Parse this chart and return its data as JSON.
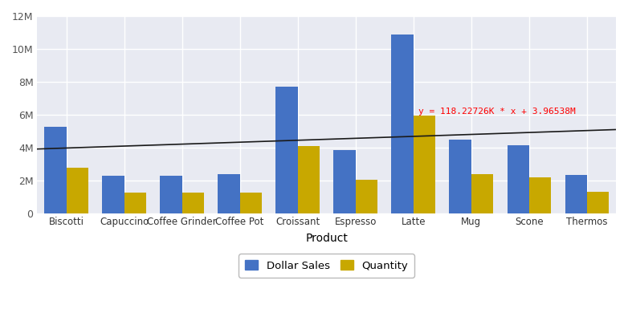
{
  "categories": [
    "Biscotti",
    "Capuccino",
    "Coffee Grinder",
    "Coffee Pot",
    "Croissant",
    "Espresso",
    "Latte",
    "Mug",
    "Scone",
    "Thermos"
  ],
  "dollar_sales": [
    5250000,
    2300000,
    2280000,
    2380000,
    7700000,
    3850000,
    10900000,
    4480000,
    4150000,
    2350000
  ],
  "quantity": [
    2750000,
    1250000,
    1250000,
    1270000,
    4100000,
    2050000,
    5950000,
    2380000,
    2200000,
    1280000
  ],
  "bar_color_blue": "#4472C4",
  "bar_color_yellow": "#C8A800",
  "trendline_slope": 118227.26,
  "trendline_intercept": 3965380,
  "trendline_label": "y = 118.22726K * x + 3.96538M",
  "trendline_color": "#FF0000",
  "trendline_line_color": "#1a1a1a",
  "background_color": "#E8EAF2",
  "figure_background": "#FFFFFF",
  "xlabel": "Product",
  "ylim_max": 12000000,
  "ytick_values": [
    0,
    2000000,
    4000000,
    6000000,
    8000000,
    10000000,
    12000000
  ],
  "ytick_labels": [
    "0",
    "2M",
    "4M",
    "6M",
    "8M",
    "10M",
    "12M"
  ],
  "legend_labels": [
    "Dollar Sales",
    "Quantity"
  ],
  "grid_color": "#FFFFFF",
  "bar_width": 0.38
}
